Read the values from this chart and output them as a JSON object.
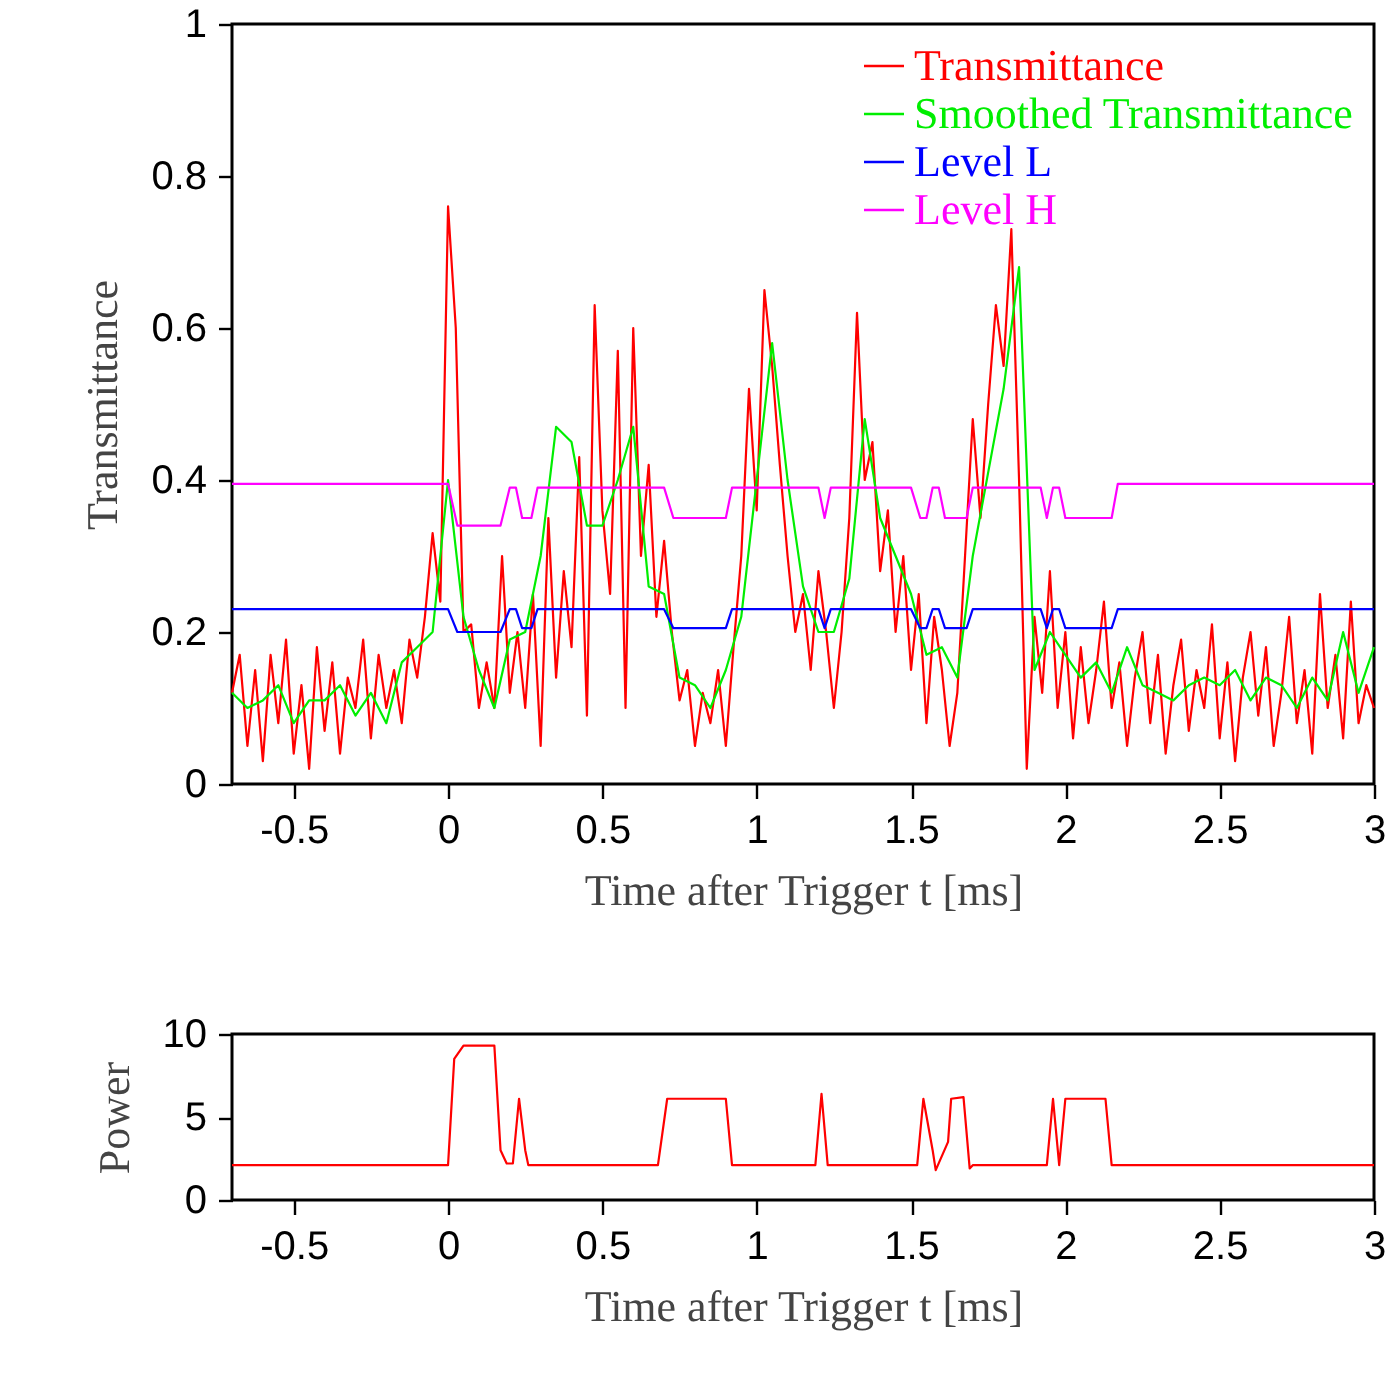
{
  "chart_data": [
    {
      "type": "line",
      "xlabel": "Time after Trigger t [ms]",
      "ylabel": "Transmittance",
      "xlim": [
        -0.7,
        3
      ],
      "ylim": [
        0,
        1
      ],
      "xticks": [
        -0.5,
        0,
        0.5,
        1,
        1.5,
        2,
        2.5,
        3
      ],
      "yticks": [
        0,
        0.2,
        0.4,
        0.6,
        0.8,
        1
      ],
      "legend": "top right",
      "series": [
        {
          "name": "Transmittance",
          "color": "#ff0000",
          "x": [
            -0.7,
            -0.675,
            -0.65,
            -0.625,
            -0.6,
            -0.575,
            -0.55,
            -0.525,
            -0.5,
            -0.475,
            -0.45,
            -0.425,
            -0.4,
            -0.375,
            -0.35,
            -0.325,
            -0.3,
            -0.275,
            -0.25,
            -0.225,
            -0.2,
            -0.175,
            -0.15,
            -0.125,
            -0.1,
            -0.075,
            -0.05,
            -0.025,
            0,
            0.025,
            0.05,
            0.075,
            0.1,
            0.125,
            0.15,
            0.175,
            0.2,
            0.225,
            0.25,
            0.275,
            0.3,
            0.325,
            0.35,
            0.375,
            0.4,
            0.425,
            0.45,
            0.475,
            0.5,
            0.525,
            0.55,
            0.575,
            0.6,
            0.625,
            0.65,
            0.675,
            0.7,
            0.725,
            0.75,
            0.775,
            0.8,
            0.825,
            0.85,
            0.875,
            0.9,
            0.925,
            0.95,
            0.975,
            1,
            1.025,
            1.05,
            1.075,
            1.1,
            1.125,
            1.15,
            1.175,
            1.2,
            1.225,
            1.25,
            1.275,
            1.3,
            1.325,
            1.35,
            1.375,
            1.4,
            1.425,
            1.45,
            1.475,
            1.5,
            1.525,
            1.55,
            1.575,
            1.6,
            1.625,
            1.65,
            1.675,
            1.7,
            1.725,
            1.75,
            1.775,
            1.8,
            1.825,
            1.85,
            1.875,
            1.9,
            1.925,
            1.95,
            1.975,
            2,
            2.025,
            2.05,
            2.075,
            2.1,
            2.125,
            2.15,
            2.175,
            2.2,
            2.225,
            2.25,
            2.275,
            2.3,
            2.325,
            2.35,
            2.375,
            2.4,
            2.425,
            2.45,
            2.475,
            2.5,
            2.525,
            2.55,
            2.575,
            2.6,
            2.625,
            2.65,
            2.675,
            2.7,
            2.725,
            2.75,
            2.775,
            2.8,
            2.825,
            2.85,
            2.875,
            2.9,
            2.925,
            2.95,
            2.975,
            3
          ],
          "values": [
            0.12,
            0.17,
            0.05,
            0.15,
            0.03,
            0.17,
            0.08,
            0.19,
            0.04,
            0.13,
            0.02,
            0.18,
            0.07,
            0.16,
            0.04,
            0.14,
            0.1,
            0.19,
            0.06,
            0.17,
            0.1,
            0.15,
            0.08,
            0.19,
            0.14,
            0.22,
            0.33,
            0.24,
            0.76,
            0.6,
            0.2,
            0.21,
            0.1,
            0.16,
            0.1,
            0.3,
            0.12,
            0.2,
            0.1,
            0.25,
            0.05,
            0.35,
            0.14,
            0.28,
            0.18,
            0.43,
            0.09,
            0.63,
            0.36,
            0.25,
            0.57,
            0.1,
            0.6,
            0.3,
            0.42,
            0.22,
            0.32,
            0.2,
            0.11,
            0.15,
            0.05,
            0.12,
            0.08,
            0.15,
            0.05,
            0.18,
            0.3,
            0.52,
            0.36,
            0.65,
            0.55,
            0.42,
            0.3,
            0.2,
            0.25,
            0.15,
            0.28,
            0.2,
            0.1,
            0.2,
            0.35,
            0.62,
            0.4,
            0.45,
            0.28,
            0.36,
            0.2,
            0.3,
            0.15,
            0.25,
            0.08,
            0.22,
            0.15,
            0.05,
            0.12,
            0.3,
            0.48,
            0.35,
            0.5,
            0.63,
            0.55,
            0.73,
            0.4,
            0.02,
            0.22,
            0.12,
            0.28,
            0.1,
            0.2,
            0.06,
            0.18,
            0.08,
            0.15,
            0.24,
            0.1,
            0.16,
            0.05,
            0.14,
            0.2,
            0.08,
            0.17,
            0.04,
            0.13,
            0.19,
            0.07,
            0.15,
            0.1,
            0.21,
            0.06,
            0.16,
            0.03,
            0.14,
            0.2,
            0.09,
            0.18,
            0.05,
            0.12,
            0.22,
            0.08,
            0.15,
            0.04,
            0.25,
            0.1,
            0.17,
            0.06,
            0.24,
            0.08,
            0.13,
            0.1
          ]
        },
        {
          "name": "Smoothed Transmittance",
          "color": "#00ee00",
          "x": [
            -0.7,
            -0.65,
            -0.6,
            -0.55,
            -0.5,
            -0.45,
            -0.4,
            -0.35,
            -0.3,
            -0.25,
            -0.2,
            -0.15,
            -0.1,
            -0.05,
            0,
            0.05,
            0.1,
            0.15,
            0.2,
            0.25,
            0.3,
            0.35,
            0.4,
            0.45,
            0.5,
            0.55,
            0.6,
            0.65,
            0.7,
            0.75,
            0.8,
            0.85,
            0.9,
            0.95,
            1,
            1.05,
            1.1,
            1.15,
            1.2,
            1.25,
            1.3,
            1.35,
            1.4,
            1.45,
            1.5,
            1.55,
            1.6,
            1.65,
            1.7,
            1.75,
            1.8,
            1.85,
            1.9,
            1.95,
            2,
            2.05,
            2.1,
            2.15,
            2.2,
            2.25,
            2.3,
            2.35,
            2.4,
            2.45,
            2.5,
            2.55,
            2.6,
            2.65,
            2.7,
            2.75,
            2.8,
            2.85,
            2.9,
            2.95,
            3
          ],
          "values": [
            0.12,
            0.1,
            0.11,
            0.13,
            0.08,
            0.11,
            0.11,
            0.13,
            0.09,
            0.12,
            0.08,
            0.16,
            0.18,
            0.2,
            0.4,
            0.22,
            0.15,
            0.1,
            0.19,
            0.2,
            0.3,
            0.47,
            0.45,
            0.34,
            0.34,
            0.4,
            0.47,
            0.26,
            0.25,
            0.14,
            0.13,
            0.1,
            0.15,
            0.22,
            0.4,
            0.58,
            0.4,
            0.26,
            0.2,
            0.2,
            0.27,
            0.48,
            0.35,
            0.3,
            0.25,
            0.17,
            0.18,
            0.14,
            0.3,
            0.41,
            0.52,
            0.68,
            0.15,
            0.2,
            0.17,
            0.14,
            0.16,
            0.12,
            0.18,
            0.13,
            0.12,
            0.11,
            0.13,
            0.14,
            0.13,
            0.15,
            0.11,
            0.14,
            0.13,
            0.1,
            0.14,
            0.11,
            0.2,
            0.12,
            0.18
          ]
        },
        {
          "name": "Level L",
          "color": "#0000ff",
          "x": [
            -0.7,
            0,
            0.03,
            0.17,
            0.2,
            0.22,
            0.24,
            0.27,
            0.29,
            0.7,
            0.73,
            0.9,
            0.92,
            1.2,
            1.22,
            1.24,
            1.5,
            1.53,
            1.55,
            1.57,
            1.59,
            1.61,
            1.68,
            1.7,
            1.92,
            1.94,
            1.96,
            1.98,
            2,
            2.15,
            2.17,
            3
          ],
          "values": [
            0.23,
            0.23,
            0.2,
            0.2,
            0.23,
            0.23,
            0.205,
            0.205,
            0.23,
            0.23,
            0.205,
            0.205,
            0.23,
            0.23,
            0.205,
            0.23,
            0.23,
            0.205,
            0.205,
            0.23,
            0.23,
            0.205,
            0.205,
            0.23,
            0.23,
            0.205,
            0.23,
            0.23,
            0.205,
            0.205,
            0.23,
            0.23
          ]
        },
        {
          "name": "Level H",
          "color": "#ff00ff",
          "x": [
            -0.7,
            0,
            0.03,
            0.17,
            0.2,
            0.22,
            0.24,
            0.27,
            0.29,
            0.7,
            0.73,
            0.9,
            0.92,
            1.2,
            1.22,
            1.24,
            1.5,
            1.53,
            1.55,
            1.57,
            1.59,
            1.61,
            1.68,
            1.7,
            1.92,
            1.94,
            1.96,
            1.98,
            2,
            2.15,
            2.17,
            3
          ],
          "values": [
            0.395,
            0.395,
            0.34,
            0.34,
            0.39,
            0.39,
            0.35,
            0.35,
            0.39,
            0.39,
            0.35,
            0.35,
            0.39,
            0.39,
            0.35,
            0.39,
            0.39,
            0.35,
            0.35,
            0.39,
            0.39,
            0.35,
            0.35,
            0.39,
            0.39,
            0.35,
            0.39,
            0.39,
            0.35,
            0.35,
            0.395,
            0.395
          ]
        }
      ]
    },
    {
      "type": "line",
      "xlabel": "Time after Trigger t [ms]",
      "ylabel": "Power",
      "xlim": [
        -0.7,
        3
      ],
      "ylim": [
        0,
        10
      ],
      "xticks": [
        -0.5,
        0,
        0.5,
        1,
        1.5,
        2,
        2.5,
        3
      ],
      "yticks": [
        0,
        5,
        10
      ],
      "series": [
        {
          "color": "#ff0000",
          "x": [
            -0.7,
            0,
            0.02,
            0.05,
            0.15,
            0.17,
            0.19,
            0.21,
            0.23,
            0.25,
            0.26,
            0.68,
            0.71,
            0.9,
            0.92,
            1.19,
            1.21,
            1.23,
            1.52,
            1.54,
            1.57,
            1.58,
            1.62,
            1.63,
            1.67,
            1.69,
            1.7,
            1.94,
            1.96,
            1.98,
            2,
            2.13,
            2.15,
            3
          ],
          "values": [
            2.1,
            2.1,
            8.5,
            9.3,
            9.3,
            3,
            2.2,
            2.2,
            6.1,
            3,
            2.1,
            2.1,
            6.1,
            6.1,
            2.1,
            2.1,
            6.4,
            2.1,
            2.1,
            6.1,
            3,
            1.8,
            3.5,
            6.1,
            6.2,
            1.9,
            2.1,
            2.1,
            6.1,
            2.1,
            6.1,
            6.1,
            2.1,
            2.1
          ]
        }
      ]
    }
  ]
}
